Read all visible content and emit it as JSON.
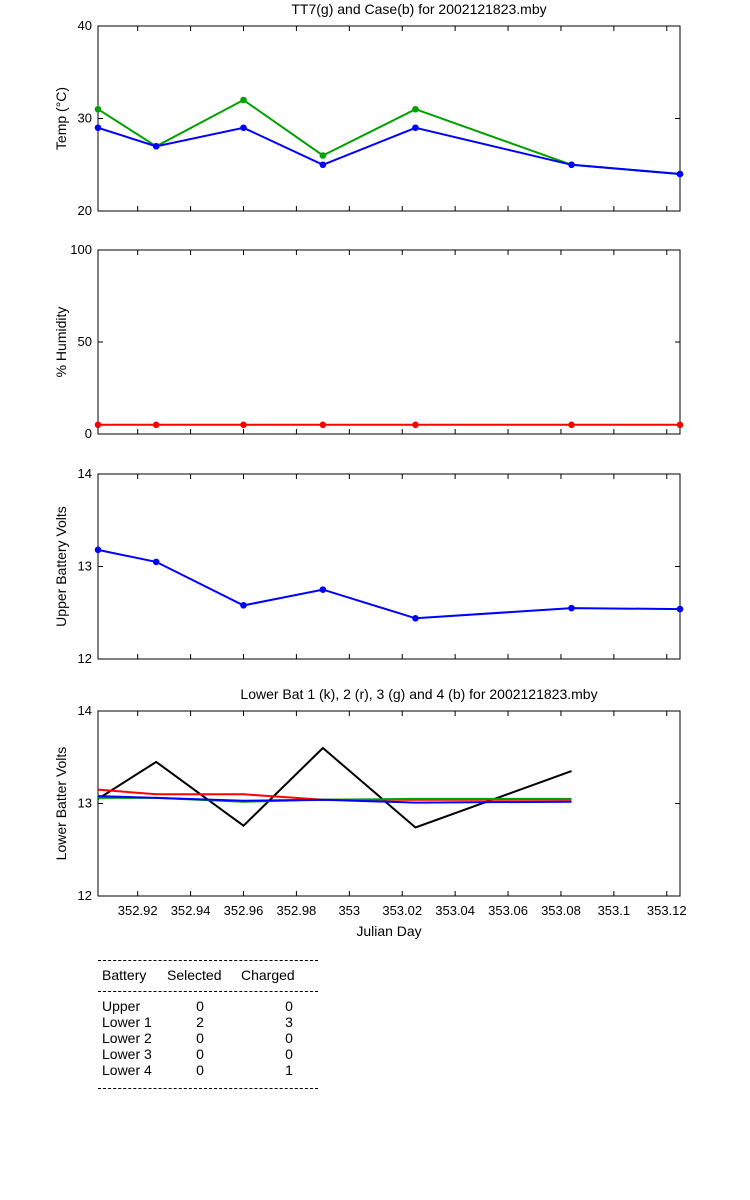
{
  "chart_data": [
    {
      "type": "line",
      "title": "TT7(g) and Case(b) for 2002121823.mby",
      "xlabel": "",
      "ylabel": "Temp  (°C)",
      "xlim": [
        352.905,
        353.125
      ],
      "ylim": [
        20,
        40
      ],
      "yticks": [
        20,
        30,
        40
      ],
      "x": [
        352.905,
        352.927,
        352.96,
        352.99,
        353.025,
        353.084,
        353.125
      ],
      "series": [
        {
          "name": "TT7",
          "color": "#00a000",
          "markers": true,
          "values": [
            31,
            27,
            32,
            26,
            31,
            25,
            24
          ]
        },
        {
          "name": "Case",
          "color": "#0000ff",
          "markers": true,
          "values": [
            29,
            27,
            29,
            25,
            29,
            25,
            24
          ]
        }
      ]
    },
    {
      "type": "line",
      "title": "",
      "xlabel": "",
      "ylabel": "% Humidity",
      "xlim": [
        352.905,
        353.125
      ],
      "ylim": [
        0,
        100
      ],
      "yticks": [
        0,
        50,
        100
      ],
      "x": [
        352.905,
        352.927,
        352.96,
        352.99,
        353.025,
        353.084,
        353.125
      ],
      "series": [
        {
          "name": "Humidity",
          "color": "#ff0000",
          "markers": true,
          "values": [
            5,
            5,
            5,
            5,
            5,
            5,
            5
          ]
        }
      ]
    },
    {
      "type": "line",
      "title": "",
      "xlabel": "",
      "ylabel": "Upper Battery Volts",
      "xlim": [
        352.905,
        353.125
      ],
      "ylim": [
        12,
        14
      ],
      "yticks": [
        12,
        13,
        14
      ],
      "x": [
        352.905,
        352.927,
        352.96,
        352.99,
        353.025,
        353.084,
        353.125
      ],
      "series": [
        {
          "name": "Upper Battery",
          "color": "#0000ff",
          "markers": true,
          "values": [
            13.18,
            13.05,
            12.58,
            12.75,
            12.44,
            12.55,
            12.54
          ]
        }
      ]
    },
    {
      "type": "line",
      "title": "Lower Bat 1 (k), 2 (r), 3 (g) and 4 (b) for 2002121823.mby",
      "xlabel": "Julian Day",
      "ylabel": "Lower Batter Volts",
      "xlim": [
        352.905,
        353.125
      ],
      "ylim": [
        12,
        14
      ],
      "yticks": [
        12,
        13,
        14
      ],
      "xticks": [
        352.92,
        352.94,
        352.96,
        352.98,
        353,
        353.02,
        353.04,
        353.06,
        353.08,
        353.1,
        353.12
      ],
      "xticklabels": [
        "352.92",
        "352.94",
        "352.96",
        "352.98",
        "353",
        "353.02",
        "353.04",
        "353.06",
        "353.08",
        "353.1",
        "353.12"
      ],
      "x": [
        352.905,
        352.927,
        352.96,
        352.99,
        353.025,
        353.084
      ],
      "series": [
        {
          "name": "Lower Bat 1",
          "color": "#000000",
          "markers": false,
          "values": [
            13.05,
            13.45,
            12.76,
            13.6,
            12.74,
            13.35
          ]
        },
        {
          "name": "Lower Bat 2",
          "color": "#ff0000",
          "markers": false,
          "values": [
            13.15,
            13.1,
            13.1,
            13.04,
            13.04,
            13.04
          ]
        },
        {
          "name": "Lower Bat 3",
          "color": "#00a000",
          "markers": false,
          "values": [
            13.06,
            13.06,
            13.02,
            13.04,
            13.05,
            13.05
          ]
        },
        {
          "name": "Lower Bat 4",
          "color": "#0000ff",
          "markers": false,
          "values": [
            13.08,
            13.06,
            13.03,
            13.04,
            13.01,
            13.02
          ]
        }
      ]
    }
  ],
  "battery_table": {
    "headers": [
      "Battery",
      "Selected",
      "Charged"
    ],
    "rows": [
      [
        "Upper",
        "0",
        "0"
      ],
      [
        "Lower 1",
        "2",
        "3"
      ],
      [
        "Lower 2",
        "0",
        "0"
      ],
      [
        "Lower 3",
        "0",
        "0"
      ],
      [
        "Lower 4",
        "0",
        "1"
      ]
    ]
  }
}
